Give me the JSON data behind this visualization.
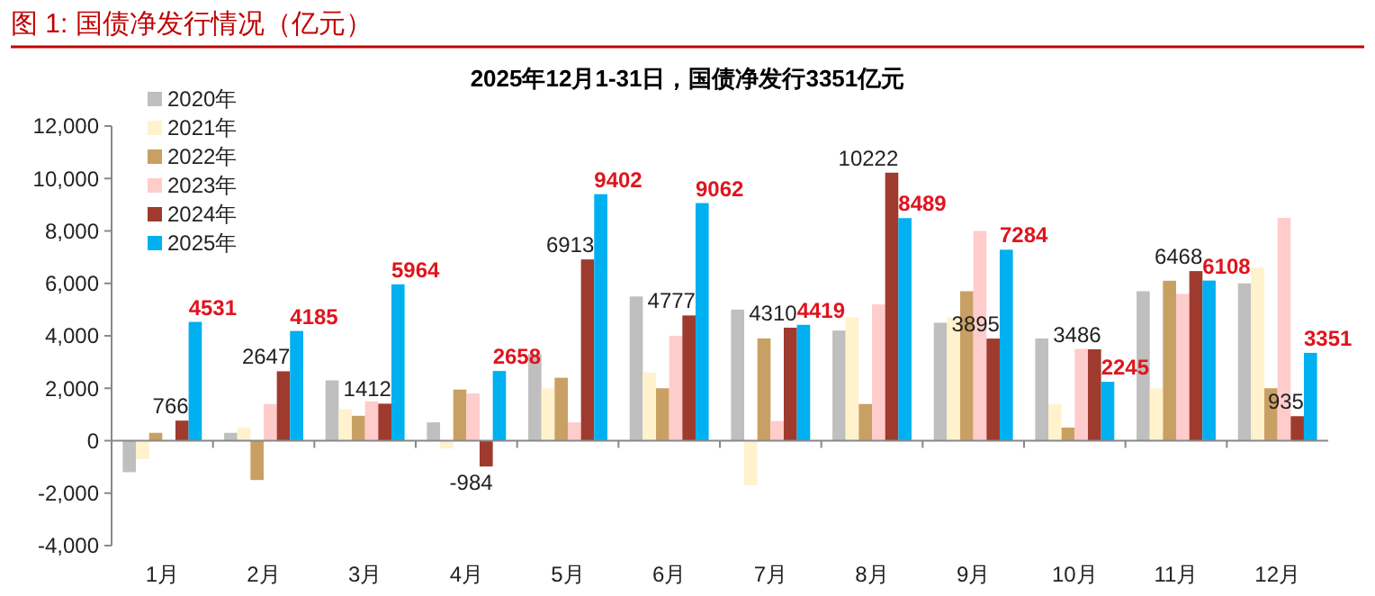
{
  "chart_data": {
    "type": "bar",
    "title": "图 1:  国债净发行情况（亿元）",
    "subtitle": "2025年12月1-31日，国债净发行3351亿元",
    "categories": [
      "1月",
      "2月",
      "3月",
      "4月",
      "5月",
      "6月",
      "7月",
      "8月",
      "9月",
      "10月",
      "11月",
      "12月"
    ],
    "series": [
      {
        "name": "2020年",
        "color": "#bfbfbf",
        "values": [
          -1200,
          300,
          2300,
          700,
          3300,
          5500,
          5000,
          4200,
          4500,
          3900,
          5700,
          6000
        ]
      },
      {
        "name": "2021年",
        "color": "#fff2cc",
        "values": [
          -700,
          500,
          1200,
          -300,
          2000,
          2600,
          -1700,
          4700,
          4700,
          1400,
          2000,
          6600
        ]
      },
      {
        "name": "2022年",
        "color": "#c9a063",
        "values": [
          300,
          -1500,
          950,
          1950,
          2400,
          2000,
          3900,
          1400,
          5700,
          500,
          6100,
          2000
        ]
      },
      {
        "name": "2023年",
        "color": "#ffcccc",
        "values": [
          0,
          1400,
          1500,
          1800,
          700,
          4000,
          750,
          5200,
          8000,
          3500,
          5600,
          8500
        ]
      },
      {
        "name": "2024年",
        "color": "#9e3b2e",
        "values": [
          766,
          2647,
          1412,
          -984,
          6913,
          4777,
          4310,
          10222,
          3895,
          3486,
          6468,
          935
        ],
        "value_labels": [
          "766",
          "2647",
          "1412",
          "-984",
          "6913",
          "4777",
          "4310",
          "10222",
          "3895",
          "3486",
          "6468",
          "935"
        ]
      },
      {
        "name": "2025年",
        "color": "#00b0f0",
        "values": [
          4531,
          4185,
          5964,
          2658,
          9402,
          9062,
          4419,
          8489,
          7284,
          2245,
          6108,
          3351
        ],
        "value_labels": [
          "4531",
          "4185",
          "5964",
          "2658",
          "9402",
          "9062",
          "4419",
          "8489",
          "7284",
          "2245",
          "6108",
          "3351"
        ]
      }
    ],
    "ylim": [
      -4000,
      12000
    ],
    "yticks": [
      {
        "value": -4000,
        "label": "-4,000"
      },
      {
        "value": -2000,
        "label": "-2,000"
      },
      0,
      {
        "value": 2000,
        "label": "2,000"
      },
      {
        "value": 4000,
        "label": "4,000"
      },
      {
        "value": 6000,
        "label": "6,000"
      },
      {
        "value": 8000,
        "label": "8,000"
      },
      {
        "value": 10000,
        "label": "10,000"
      },
      {
        "value": 12000,
        "label": "12,000"
      }
    ],
    "legend": "top left"
  }
}
